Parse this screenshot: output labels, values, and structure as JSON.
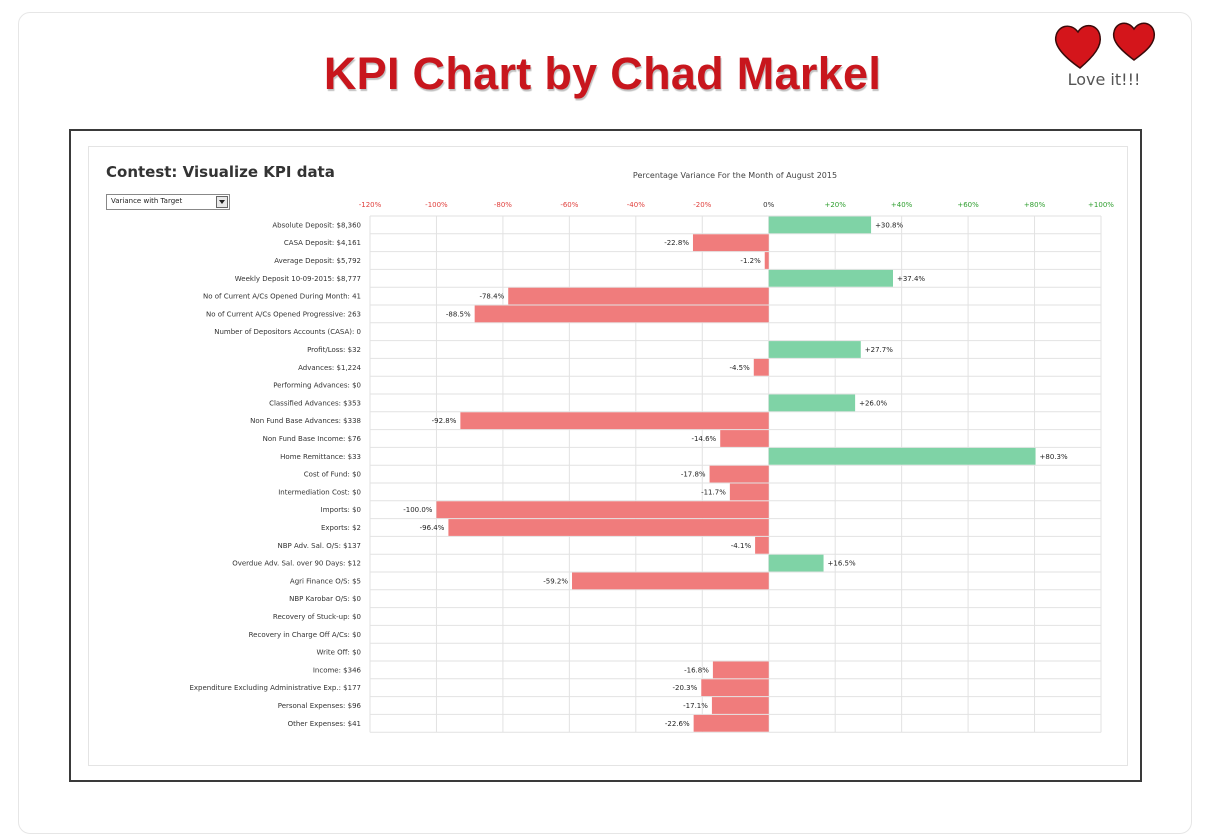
{
  "page": {
    "title": "KPI Chart by Chad Markel",
    "badge_text": "Love it!!!",
    "badge_icon": "two-hearts-icon"
  },
  "panel": {
    "title": "Contest: Visualize KPI data",
    "dropdown_value": "Variance with Target"
  },
  "colors": {
    "title": "#c8161d",
    "positive_bar": "#7fd3a6",
    "negative_bar": "#f07c7c",
    "positive_tick": "#2e9e2e",
    "negative_tick": "#e0403d",
    "heart": "#d4151b"
  },
  "chart_data": {
    "type": "bar",
    "orientation": "horizontal",
    "title": "Percentage Variance For the Month of August 2015",
    "xlim": [
      -120,
      100
    ],
    "grid": true,
    "ticks": [
      {
        "value": -120,
        "label": "-120%"
      },
      {
        "value": -100,
        "label": "-100%"
      },
      {
        "value": -80,
        "label": "-80%"
      },
      {
        "value": -60,
        "label": "-60%"
      },
      {
        "value": -40,
        "label": "-40%"
      },
      {
        "value": -20,
        "label": "-20%"
      },
      {
        "value": 0,
        "label": "0%"
      },
      {
        "value": 20,
        "label": "+20%"
      },
      {
        "value": 40,
        "label": "+40%"
      },
      {
        "value": 60,
        "label": "+60%"
      },
      {
        "value": 80,
        "label": "+80%"
      },
      {
        "value": 100,
        "label": "+100%"
      }
    ],
    "categories": [
      "Absolute Deposit: $8,360",
      "CASA Deposit: $4,161",
      "Average Deposit: $5,792",
      "Weekly Deposit 10-09-2015: $8,777",
      "No of Current A/Cs Opened During Month: 41",
      "No of Current A/Cs Opened Progressive: 263",
      "Number of Depositors Accounts (CASA): 0",
      "Profit/Loss: $32",
      "Advances: $1,224",
      "Performing Advances: $0",
      "Classified Advances: $353",
      "Non Fund Base Advances: $338",
      "Non Fund Base Income: $76",
      "Home Remittance: $33",
      "Cost of Fund: $0",
      "Intermediation Cost: $0",
      "Imports: $0",
      "Exports: $2",
      "NBP Adv. Sal. O/S: $137",
      "Overdue Adv. Sal. over 90 Days: $12",
      "Agri Finance O/S: $5",
      "NBP Karobar O/S: $0",
      "Recovery of Stuck-up: $0",
      "Recovery in Charge Off A/Cs: $0",
      "Write Off: $0",
      "Income: $346",
      "Expenditure Excluding Administrative Exp.: $177",
      "Personal Expenses: $96",
      "Other Expenses: $41"
    ],
    "values": [
      30.8,
      -22.8,
      -1.2,
      37.4,
      -78.4,
      -88.5,
      null,
      27.7,
      -4.5,
      null,
      26.0,
      -92.8,
      -14.6,
      80.3,
      -17.8,
      -11.7,
      -100.0,
      -96.4,
      -4.1,
      16.5,
      -59.2,
      null,
      null,
      null,
      null,
      -16.8,
      -20.3,
      -17.1,
      -22.6
    ],
    "data_labels": [
      "+30.8%",
      "-22.8%",
      "-1.2%",
      "+37.4%",
      "-78.4%",
      "-88.5%",
      "",
      "+27.7%",
      "-4.5%",
      "",
      "+26.0%",
      "-92.8%",
      "-14.6%",
      "+80.3%",
      "-17.8%",
      "-11.7%",
      "-100.0%",
      "-96.4%",
      "-4.1%",
      "+16.5%",
      "-59.2%",
      "",
      "",
      "",
      "",
      "-16.8%",
      "-20.3%",
      "-17.1%",
      "-22.6%"
    ]
  }
}
